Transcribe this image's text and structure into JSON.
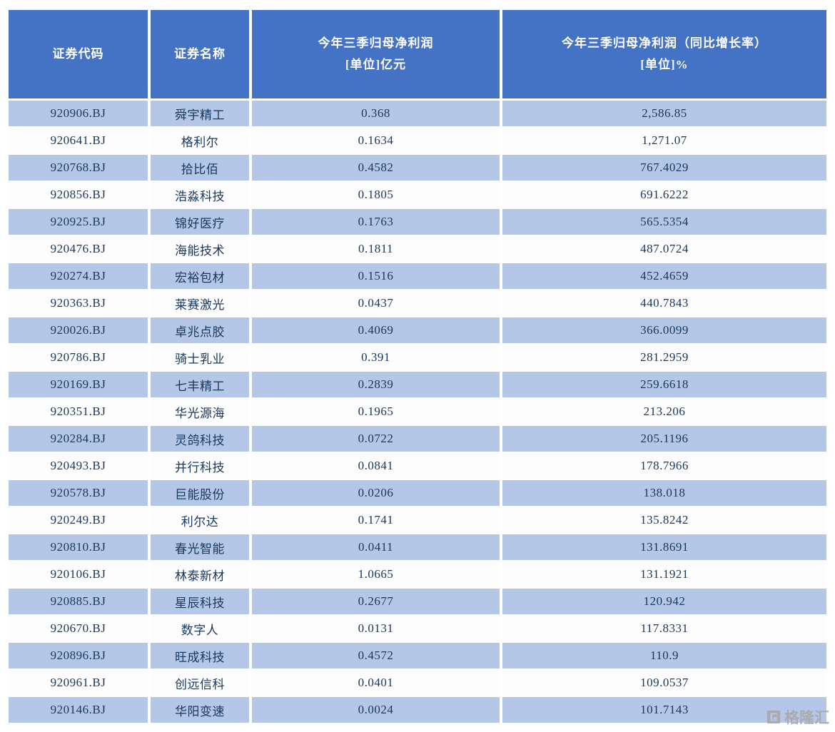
{
  "chart_data": {
    "type": "table",
    "title": "",
    "columns": [
      "证券代码",
      "证券名称",
      "今年三季归母净利润 [单位]亿元",
      "今年三季归母净利润（同比增长率） [单位]%"
    ],
    "rows": [
      [
        "920906.BJ",
        "舜宇精工",
        "0.368",
        "2,586.85"
      ],
      [
        "920641.BJ",
        "格利尔",
        "0.1634",
        "1,271.07"
      ],
      [
        "920768.BJ",
        "拾比佰",
        "0.4582",
        "767.4029"
      ],
      [
        "920856.BJ",
        "浩淼科技",
        "0.1805",
        "691.6222"
      ],
      [
        "920925.BJ",
        "锦好医疗",
        "0.1763",
        "565.5354"
      ],
      [
        "920476.BJ",
        "海能技术",
        "0.1811",
        "487.0724"
      ],
      [
        "920274.BJ",
        "宏裕包材",
        "0.1516",
        "452.4659"
      ],
      [
        "920363.BJ",
        "莱赛激光",
        "0.0437",
        "440.7843"
      ],
      [
        "920026.BJ",
        "卓兆点胶",
        "0.4069",
        "366.0099"
      ],
      [
        "920786.BJ",
        "骑士乳业",
        "0.391",
        "281.2959"
      ],
      [
        "920169.BJ",
        "七丰精工",
        "0.2839",
        "259.6618"
      ],
      [
        "920351.BJ",
        "华光源海",
        "0.1965",
        "213.206"
      ],
      [
        "920284.BJ",
        "灵鸽科技",
        "0.0722",
        "205.1196"
      ],
      [
        "920493.BJ",
        "并行科技",
        "0.0841",
        "178.7966"
      ],
      [
        "920578.BJ",
        "巨能股份",
        "0.0206",
        "138.018"
      ],
      [
        "920249.BJ",
        "利尔达",
        "0.1741",
        "135.8242"
      ],
      [
        "920810.BJ",
        "春光智能",
        "0.0411",
        "131.8691"
      ],
      [
        "920106.BJ",
        "林泰新材",
        "1.0665",
        "131.1921"
      ],
      [
        "920885.BJ",
        "星辰科技",
        "0.2677",
        "120.942"
      ],
      [
        "920670.BJ",
        "数字人",
        "0.0131",
        "117.8331"
      ],
      [
        "920896.BJ",
        "旺成科技",
        "0.4572",
        "110.9"
      ],
      [
        "920961.BJ",
        "创远信科",
        "0.0401",
        "109.0537"
      ],
      [
        "920146.BJ",
        "华阳变速",
        "0.0024",
        "101.7143"
      ]
    ]
  },
  "table": {
    "headers": [
      {
        "title": "证券代码",
        "unit": ""
      },
      {
        "title": "证券名称",
        "unit": ""
      },
      {
        "title": "今年三季归母净利润",
        "unit": "[单位]亿元"
      },
      {
        "title": "今年三季归母净利润（同比增长率）",
        "unit": "[单位]%"
      }
    ]
  },
  "watermark": {
    "brand": "格隆汇"
  },
  "colors": {
    "header_bg": "#4472C4",
    "header_text": "#FFFFFF",
    "row_odd_bg": "#B4C7E7",
    "row_even_bg": "#FDFDFE",
    "body_text": "#17375E",
    "watermark_gray": "#A9A9A9"
  }
}
